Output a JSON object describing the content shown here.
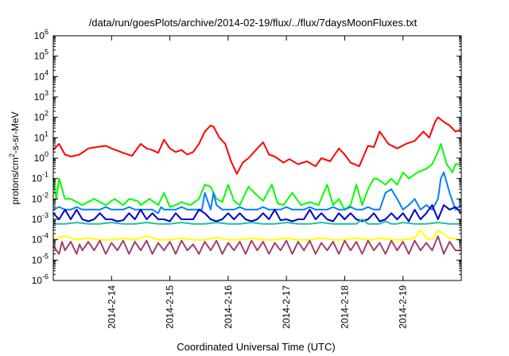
{
  "chart_data": {
    "type": "line",
    "title": "/data/run/goesPlots/archive/2014-02-19/flux/../flux/7daysMoonFluxes.txt",
    "xlabel": "Coordinated Universal Time (UTC)",
    "ylabel": {
      "pre": "protons/cm",
      "sup": "2",
      "post": "-s-sr-MeV"
    },
    "yscale": "log",
    "ylim": [
      1e-06,
      1000000.0
    ],
    "yticks": [
      {
        "exp": "-6",
        "value": 1e-06
      },
      {
        "exp": "-5",
        "value": 1e-05
      },
      {
        "exp": "-4",
        "value": 0.0001
      },
      {
        "exp": "-3",
        "value": 0.001
      },
      {
        "exp": "-2",
        "value": 0.01
      },
      {
        "exp": "-1",
        "value": 0.1
      },
      {
        "exp": "0",
        "value": 1
      },
      {
        "exp": "1",
        "value": 10
      },
      {
        "exp": "2",
        "value": 100
      },
      {
        "exp": "3",
        "value": 1000
      },
      {
        "exp": "4",
        "value": 10000
      },
      {
        "exp": "5",
        "value": 100000
      },
      {
        "exp": "6",
        "value": 1000000
      }
    ],
    "xlim": [
      13.0,
      20.0
    ],
    "xticks": [
      {
        "value": 14,
        "label": "2014-2-14"
      },
      {
        "value": 15,
        "label": "2014-2-15"
      },
      {
        "value": 16,
        "label": "2014-2-16"
      },
      {
        "value": 17,
        "label": "2014-2-17"
      },
      {
        "value": 18,
        "label": "2014-2-18"
      },
      {
        "value": 19,
        "label": "2014-2-19"
      }
    ],
    "grid": false,
    "legend": false,
    "series": [
      {
        "color": "#ff0000",
        "x": [
          13.0,
          13.1,
          13.2,
          13.3,
          13.45,
          13.6,
          13.75,
          13.9,
          14.0,
          14.2,
          14.35,
          14.5,
          14.6,
          14.7,
          14.8,
          14.9,
          15.0,
          15.1,
          15.2,
          15.3,
          15.4,
          15.5,
          15.55,
          15.6,
          15.7,
          15.75,
          15.85,
          15.95,
          16.05,
          16.15,
          16.25,
          16.35,
          16.5,
          16.6,
          16.7,
          16.8,
          16.95,
          17.05,
          17.2,
          17.35,
          17.5,
          17.6,
          17.75,
          17.9,
          18.0,
          18.1,
          18.25,
          18.4,
          18.5,
          18.6,
          18.75,
          18.9,
          19.05,
          19.2,
          19.35,
          19.45,
          19.55,
          19.6,
          19.7,
          19.8,
          19.9,
          20.0
        ],
        "y": [
          2.5,
          5,
          1.5,
          1.2,
          1.5,
          3,
          3.5,
          4,
          3,
          1.8,
          1.3,
          5,
          3,
          2.5,
          1.8,
          8,
          3,
          2,
          2.5,
          1.5,
          2,
          5,
          10,
          20,
          40,
          35,
          10,
          5,
          0.7,
          0.17,
          0.6,
          1,
          3,
          6,
          1.5,
          1.2,
          0.6,
          0.9,
          0.5,
          0.7,
          0.4,
          1,
          0.7,
          3,
          1.5,
          0.6,
          0.4,
          4,
          3.5,
          20,
          5,
          3,
          5,
          7,
          20,
          10,
          60,
          100,
          60,
          40,
          20,
          25
        ]
      },
      {
        "color": "#00ff00",
        "x": [
          13.0,
          13.05,
          13.1,
          13.2,
          13.3,
          13.5,
          13.7,
          13.9,
          14.05,
          14.2,
          14.3,
          14.45,
          14.5,
          14.65,
          14.8,
          14.9,
          15.0,
          15.1,
          15.2,
          15.35,
          15.5,
          15.6,
          15.7,
          15.8,
          15.9,
          16.0,
          16.1,
          16.2,
          16.35,
          16.45,
          16.6,
          16.75,
          16.85,
          16.95,
          17.1,
          17.25,
          17.4,
          17.55,
          17.7,
          17.8,
          17.9,
          18.0,
          18.1,
          18.2,
          18.3,
          18.4,
          18.5,
          18.55,
          18.7,
          18.8,
          18.9,
          19.0,
          19.1,
          19.25,
          19.4,
          19.5,
          19.6,
          19.65,
          19.75,
          19.85,
          19.9,
          20.0
        ],
        "y": [
          0.1,
          0.01,
          0.1,
          0.01,
          0.01,
          0.005,
          0.01,
          0.005,
          0.01,
          0.005,
          0.01,
          0.008,
          0.005,
          0.01,
          0.005,
          0.02,
          0.004,
          0.005,
          0.007,
          0.005,
          0.01,
          0.05,
          0.04,
          0.01,
          0.007,
          0.05,
          0.008,
          0.005,
          0.04,
          0.02,
          0.008,
          0.05,
          0.006,
          0.005,
          0.02,
          0.005,
          0.007,
          0.005,
          0.05,
          0.005,
          0.01,
          0.003,
          0.005,
          0.05,
          0.005,
          0.03,
          0.1,
          0.1,
          0.05,
          0.1,
          0.05,
          0.2,
          0.1,
          0.2,
          0.3,
          0.5,
          2,
          5,
          0.5,
          0.2,
          0.5,
          0.5
        ]
      },
      {
        "color": "#0080ff",
        "x": [
          13.0,
          13.1,
          13.2,
          13.3,
          13.4,
          13.5,
          13.6,
          13.7,
          13.8,
          13.9,
          14.0,
          14.1,
          14.2,
          14.3,
          14.4,
          14.5,
          14.6,
          14.7,
          14.8,
          14.85,
          14.9,
          15.0,
          15.1,
          15.2,
          15.3,
          15.4,
          15.5,
          15.55,
          15.6,
          15.7,
          15.75,
          15.8,
          15.9,
          16.0,
          16.1,
          16.2,
          16.3,
          16.4,
          16.5,
          16.6,
          16.7,
          16.8,
          16.9,
          17.0,
          17.1,
          17.2,
          17.3,
          17.4,
          17.5,
          17.6,
          17.7,
          17.8,
          17.9,
          18.0,
          18.1,
          18.2,
          18.3,
          18.4,
          18.5,
          18.6,
          18.7,
          18.8,
          18.9,
          19.0,
          19.1,
          19.2,
          19.3,
          19.4,
          19.5,
          19.6,
          19.65,
          19.7,
          19.8,
          19.9,
          20.0
        ],
        "y": [
          0.003,
          0.004,
          0.003,
          0.003,
          0.004,
          0.003,
          0.003,
          0.003,
          0.003,
          0.004,
          0.003,
          0.003,
          0.003,
          0.004,
          0.003,
          0.003,
          0.003,
          0.003,
          0.002,
          0.004,
          0.003,
          0.003,
          0.003,
          0.004,
          0.003,
          0.003,
          0.003,
          0.003,
          0.02,
          0.003,
          0.02,
          0.005,
          0.003,
          0.003,
          0.003,
          0.004,
          0.003,
          0.003,
          0.003,
          0.004,
          0.003,
          0.003,
          0.003,
          0.004,
          0.003,
          0.003,
          0.003,
          0.004,
          0.003,
          0.003,
          0.003,
          0.004,
          0.003,
          0.003,
          0.004,
          0.003,
          0.003,
          0.004,
          0.003,
          0.003,
          0.02,
          0.03,
          0.01,
          0.003,
          0.005,
          0.01,
          0.003,
          0.005,
          0.003,
          0.01,
          0.1,
          0.2,
          0.02,
          0.003,
          0.005
        ]
      },
      {
        "color": "#0000cc",
        "x": [
          13.0,
          13.1,
          13.2,
          13.3,
          13.4,
          13.5,
          13.6,
          13.7,
          13.8,
          13.9,
          14.0,
          14.1,
          14.2,
          14.3,
          14.4,
          14.5,
          14.6,
          14.7,
          14.8,
          14.9,
          15.0,
          15.1,
          15.2,
          15.3,
          15.4,
          15.5,
          15.6,
          15.7,
          15.8,
          15.9,
          16.0,
          16.1,
          16.2,
          16.3,
          16.4,
          16.5,
          16.6,
          16.7,
          16.8,
          16.9,
          17.0,
          17.1,
          17.2,
          17.3,
          17.4,
          17.5,
          17.6,
          17.7,
          17.8,
          17.9,
          18.0,
          18.1,
          18.2,
          18.3,
          18.4,
          18.5,
          18.6,
          18.7,
          18.8,
          18.9,
          19.0,
          19.1,
          19.2,
          19.3,
          19.4,
          19.5,
          19.6,
          19.7,
          19.8,
          19.9,
          20.0
        ],
        "y": [
          0.002,
          0.001,
          0.003,
          0.001,
          0.003,
          0.001,
          0.0008,
          0.001,
          0.002,
          0.001,
          0.001,
          0.0008,
          0.0009,
          0.002,
          0.001,
          0.003,
          0.001,
          0.002,
          0.001,
          0.001,
          0.0008,
          0.002,
          0.001,
          0.001,
          0.001,
          0.003,
          0.002,
          0.001,
          0.0008,
          0.001,
          0.002,
          0.001,
          0.002,
          0.001,
          0.0008,
          0.001,
          0.002,
          0.001,
          0.003,
          0.0009,
          0.001,
          0.0008,
          0.001,
          0.001,
          0.003,
          0.001,
          0.002,
          0.001,
          0.0008,
          0.002,
          0.001,
          0.002,
          0.001,
          0.0008,
          0.001,
          0.002,
          0.0008,
          0.001,
          0.002,
          0.001,
          0.002,
          0.0008,
          0.003,
          0.001,
          0.002,
          0.005,
          0.001,
          0.005,
          0.003,
          0.004,
          0.002
        ]
      },
      {
        "color": "#20c0a0",
        "x": [
          13.0,
          13.2,
          13.4,
          13.6,
          13.8,
          14.0,
          14.2,
          14.4,
          14.6,
          14.8,
          15.0,
          15.2,
          15.4,
          15.6,
          15.8,
          16.0,
          16.2,
          16.4,
          16.6,
          16.8,
          17.0,
          17.2,
          17.4,
          17.6,
          17.8,
          18.0,
          18.2,
          18.3,
          18.4,
          18.5,
          18.6,
          18.7,
          18.8,
          18.9,
          19.0,
          19.2,
          19.4,
          19.6,
          19.8,
          20.0
        ],
        "y": [
          0.0006,
          0.0006,
          0.0007,
          0.0006,
          0.0006,
          0.0007,
          0.0006,
          0.0006,
          0.0007,
          0.0006,
          0.0006,
          0.0007,
          0.0006,
          0.0006,
          0.0007,
          0.0006,
          0.0006,
          0.0007,
          0.0006,
          0.0006,
          0.0007,
          0.0006,
          0.0006,
          0.0007,
          0.0006,
          0.0006,
          0.0006,
          0.001,
          0.0006,
          0.0006,
          0.0006,
          0.0008,
          0.0006,
          0.0006,
          0.0007,
          0.0006,
          0.0006,
          0.0007,
          0.0006,
          0.0006
        ]
      },
      {
        "color": "#ffff00",
        "x": [
          13.0,
          13.2,
          13.4,
          13.6,
          13.8,
          14.0,
          14.2,
          14.4,
          14.6,
          14.8,
          15.0,
          15.2,
          15.4,
          15.6,
          15.8,
          16.0,
          16.2,
          16.4,
          16.6,
          16.8,
          17.0,
          17.2,
          17.4,
          17.6,
          17.8,
          18.0,
          18.2,
          18.4,
          18.5,
          18.6,
          18.8,
          19.0,
          19.2,
          19.3,
          19.4,
          19.5,
          19.6,
          19.8,
          20.0
        ],
        "y": [
          0.0001,
          0.00015,
          0.0001,
          0.00012,
          0.0001,
          0.0001,
          0.00012,
          0.0001,
          0.00015,
          0.0001,
          0.0001,
          0.00012,
          0.0001,
          0.0001,
          0.00013,
          0.0001,
          0.0001,
          0.00012,
          0.0001,
          0.0001,
          0.00012,
          0.0001,
          0.0001,
          0.00012,
          0.0001,
          0.0001,
          0.00012,
          0.0001,
          0.0001,
          0.00012,
          0.0001,
          0.0001,
          0.00012,
          0.0003,
          0.00012,
          0.0001,
          0.0003,
          0.00012,
          0.0001
        ]
      },
      {
        "color": "#a0406e",
        "x": [
          13.0,
          13.1,
          13.15,
          13.2,
          13.3,
          13.4,
          13.45,
          13.5,
          13.6,
          13.7,
          13.8,
          13.9,
          14.0,
          14.1,
          14.2,
          14.3,
          14.4,
          14.5,
          14.6,
          14.7,
          14.8,
          14.9,
          15.0,
          15.1,
          15.2,
          15.3,
          15.4,
          15.5,
          15.6,
          15.7,
          15.8,
          15.9,
          16.0,
          16.1,
          16.2,
          16.3,
          16.4,
          16.5,
          16.6,
          16.7,
          16.8,
          16.9,
          17.0,
          17.1,
          17.2,
          17.3,
          17.4,
          17.5,
          17.6,
          17.7,
          17.8,
          17.9,
          18.0,
          18.1,
          18.2,
          18.3,
          18.4,
          18.5,
          18.6,
          18.7,
          18.8,
          18.9,
          19.0,
          19.1,
          19.2,
          19.3,
          19.4,
          19.5,
          19.6,
          19.7,
          19.8,
          19.9,
          20.0
        ],
        "y": [
          5e-05,
          2e-05,
          8e-05,
          3e-05,
          8e-05,
          2e-05,
          6e-05,
          3e-05,
          8e-05,
          3e-05,
          9e-05,
          2e-05,
          7e-05,
          3e-05,
          9e-05,
          2e-05,
          8e-05,
          3e-05,
          9e-05,
          2e-05,
          7e-05,
          3e-05,
          8e-05,
          2e-05,
          9e-05,
          3e-05,
          6e-05,
          2e-05,
          8e-05,
          3e-05,
          9e-05,
          2e-05,
          7e-05,
          3e-05,
          8e-05,
          2e-05,
          9e-05,
          3e-05,
          8e-05,
          2e-05,
          7e-05,
          3e-05,
          9e-05,
          2e-05,
          8e-05,
          3e-05,
          9e-05,
          2e-05,
          7e-05,
          3e-05,
          8e-05,
          2e-05,
          9e-05,
          3e-05,
          8e-05,
          2e-05,
          9e-05,
          3e-05,
          7e-05,
          2e-05,
          9e-05,
          3e-05,
          8e-05,
          2e-05,
          9e-05,
          3e-05,
          7e-05,
          3e-05,
          0.00015,
          2e-05,
          8e-05,
          3e-05,
          3e-05
        ]
      }
    ]
  }
}
